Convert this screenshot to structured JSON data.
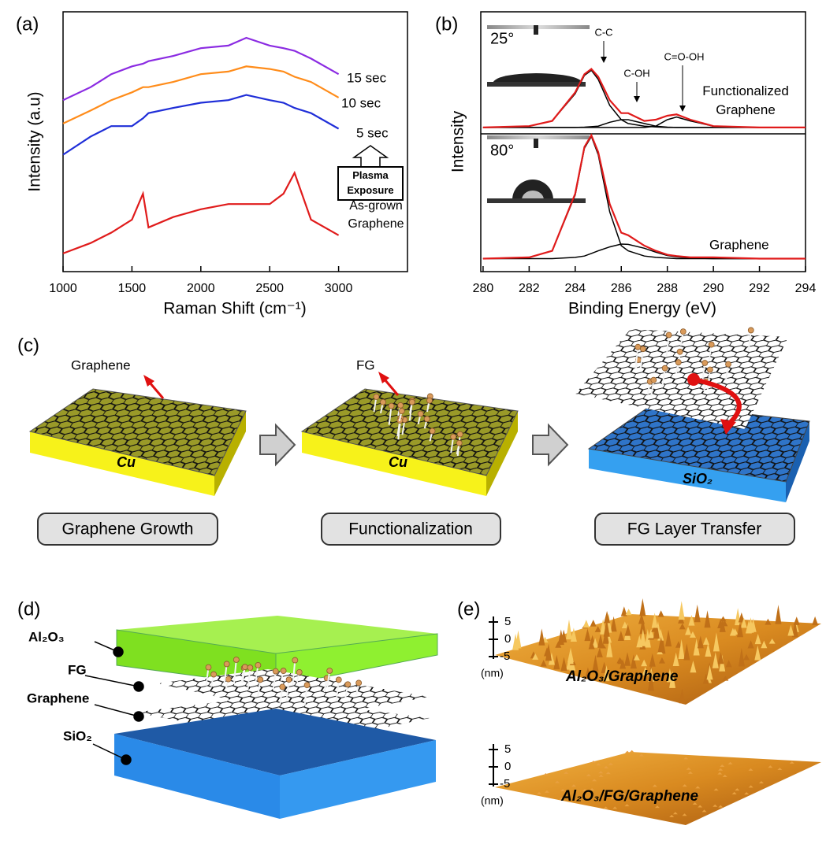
{
  "chart_data": [
    {
      "type": "line",
      "label": "(a)",
      "xlabel": "Raman Shift (cm⁻¹)",
      "ylabel": "Intensity (a.u)",
      "x": [
        1000,
        1200,
        1350,
        1500,
        1580,
        1620,
        1800,
        2000,
        2200,
        2330,
        2500,
        2600,
        2680,
        2800,
        3000
      ],
      "xlim": [
        1000,
        3500
      ],
      "xticks": [
        1000,
        1500,
        2000,
        2500,
        3000
      ],
      "ylim": [
        0,
        10
      ],
      "series": [
        {
          "name": "15 sec",
          "color": "#8b2be2",
          "values": [
            6.6,
            7.1,
            7.6,
            7.9,
            8.0,
            8.1,
            8.3,
            8.6,
            8.7,
            9.0,
            8.7,
            8.6,
            8.5,
            8.2,
            7.6
          ]
        },
        {
          "name": "10 sec",
          "color": "#ff8c1a",
          "values": [
            5.7,
            6.2,
            6.6,
            6.9,
            7.1,
            7.1,
            7.3,
            7.6,
            7.7,
            7.9,
            7.8,
            7.7,
            7.5,
            7.3,
            6.7
          ]
        },
        {
          "name": "5 sec",
          "color": "#1f2ed8",
          "values": [
            4.5,
            5.2,
            5.6,
            5.6,
            5.9,
            6.1,
            6.3,
            6.5,
            6.6,
            6.8,
            6.6,
            6.5,
            6.3,
            6.1,
            5.5
          ]
        },
        {
          "name": "As-grown Graphene",
          "color": "#e01b1b",
          "values": [
            0.7,
            1.1,
            1.5,
            2.0,
            3.0,
            1.7,
            2.1,
            2.4,
            2.6,
            2.6,
            2.6,
            3.0,
            3.8,
            2.0,
            1.4
          ]
        }
      ],
      "annotation": "Plasma Exposure"
    },
    {
      "type": "line",
      "label": "(b)",
      "xlabel": "Binding Energy (eV)",
      "ylabel": "Intensity",
      "x": [
        280,
        282,
        283,
        284,
        284.4,
        284.7,
        285,
        285.5,
        286,
        286.3,
        287,
        287.5,
        288,
        288.4,
        289,
        290,
        292,
        294
      ],
      "xlim": [
        279.9,
        294
      ],
      "xticks": [
        280,
        282,
        284,
        286,
        288,
        290,
        292,
        294
      ],
      "ylim": [
        0,
        10
      ],
      "series": [
        {
          "name": "C-C",
          "color": "#000000",
          "values": [
            5.55,
            5.6,
            5.8,
            6.85,
            7.55,
            7.75,
            7.4,
            6.4,
            5.85,
            5.7,
            5.6,
            5.57,
            5.55,
            5.55,
            5.55,
            5.55,
            5.55,
            5.55
          ]
        },
        {
          "name": "C-OH",
          "color": "#000000",
          "values": [
            5.55,
            5.55,
            5.55,
            5.55,
            5.56,
            5.58,
            5.6,
            5.75,
            5.85,
            5.85,
            5.7,
            5.6,
            5.56,
            5.55,
            5.55,
            5.55,
            5.55,
            5.55
          ]
        },
        {
          "name": "C=O-OH",
          "color": "#000000",
          "values": [
            5.55,
            5.55,
            5.55,
            5.55,
            5.55,
            5.55,
            5.55,
            5.55,
            5.55,
            5.55,
            5.55,
            5.6,
            5.85,
            5.95,
            5.8,
            5.6,
            5.55,
            5.55
          ]
        },
        {
          "color": "#000000",
          "values": [
            0.5,
            0.55,
            0.8,
            2.95,
            4.75,
            5.2,
            4.5,
            2.3,
            1.0,
            0.8,
            0.6,
            0.55,
            0.52,
            0.5,
            0.5,
            0.5,
            0.5,
            0.5
          ]
        },
        {
          "color": "#000000",
          "values": [
            0.5,
            0.5,
            0.5,
            0.55,
            0.6,
            0.7,
            0.8,
            0.95,
            1.06,
            1.05,
            0.9,
            0.75,
            0.62,
            0.57,
            0.52,
            0.5,
            0.5,
            0.5
          ]
        },
        {
          "name": "Functionalized Graphene",
          "color": "#e01b1b",
          "values": [
            5.55,
            5.6,
            5.8,
            6.9,
            7.6,
            7.8,
            7.5,
            6.6,
            6.1,
            6.1,
            5.8,
            5.85,
            6.0,
            6.05,
            5.85,
            5.6,
            5.55,
            5.55
          ]
        },
        {
          "name": "Graphene",
          "color": "#e01b1b",
          "values": [
            0.5,
            0.55,
            0.8,
            3.0,
            4.8,
            5.25,
            4.6,
            2.6,
            1.5,
            1.4,
            1.0,
            0.8,
            0.65,
            0.6,
            0.55,
            0.55,
            0.5,
            0.5
          ]
        }
      ],
      "annotations": [
        "25°",
        "80°"
      ]
    }
  ],
  "panel_c": {
    "label": "(c)",
    "callouts": [
      "Graphene",
      "FG"
    ],
    "substrates": [
      "Cu",
      "Cu",
      "SiO₂"
    ],
    "steps": [
      "Graphene Growth",
      "Functionalization",
      "FG Layer Transfer"
    ]
  },
  "panel_d": {
    "label": "(d)",
    "layers": [
      "Al₂O₃",
      "FG",
      "Graphene",
      "SiO₂"
    ]
  },
  "panel_e": {
    "label": "(e)",
    "scale_labels": [
      "5",
      "0",
      "-5"
    ],
    "unit": "(nm)",
    "images": [
      "Al₂O₃/Graphene",
      "Al₂O₃/FG/Graphene"
    ]
  }
}
